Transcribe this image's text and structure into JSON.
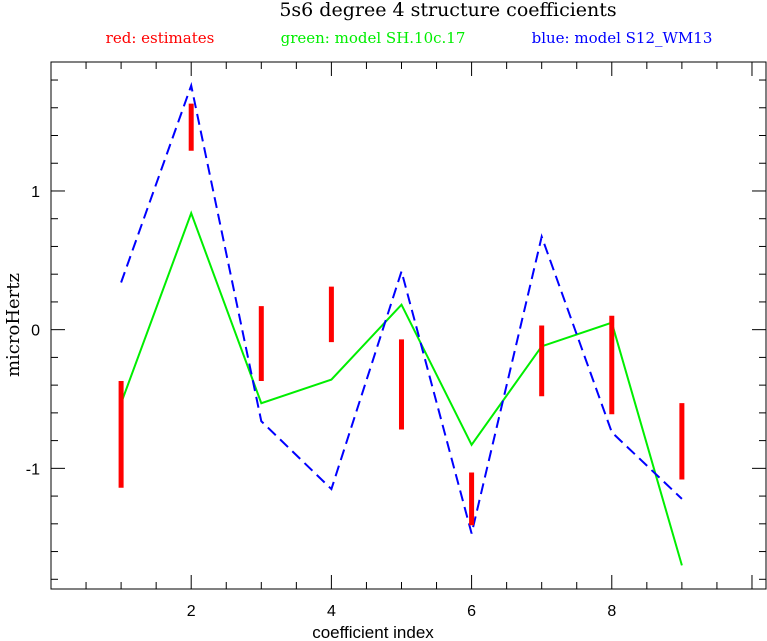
{
  "colors": {
    "estimates": "#ff0000",
    "model_sh": "#00ee00",
    "model_s12": "#0000ff",
    "axis": "#000000"
  },
  "chart_data": {
    "type": "line",
    "title": "5s6 degree 4 structure coefficients",
    "legend": [
      "red: estimates",
      "green: model SH.10c.17",
      "blue: model S12_WM13"
    ],
    "legend_placement": "top",
    "xlabel": "coefficient index",
    "ylabel": "microHertz",
    "xlim": [
      0,
      10.2
    ],
    "ylim": [
      -1.87,
      1.93
    ],
    "grid": false,
    "x_ticks": [
      2,
      4,
      6,
      8
    ],
    "x_tick_labels": [
      "2",
      "4",
      "6",
      "8"
    ],
    "y_ticks": [
      -1,
      0,
      1
    ],
    "y_tick_labels": [
      "-1",
      "0",
      "1"
    ],
    "x": [
      1,
      2,
      3,
      4,
      5,
      6,
      7,
      8,
      9
    ],
    "estimates": [
      {
        "x": 1,
        "low": -1.14,
        "high": -0.37
      },
      {
        "x": 2,
        "low": 1.29,
        "high": 1.63
      },
      {
        "x": 3,
        "low": -0.37,
        "high": 0.17
      },
      {
        "x": 4,
        "low": -0.09,
        "high": 0.31
      },
      {
        "x": 5,
        "low": -0.72,
        "high": -0.07
      },
      {
        "x": 6,
        "low": -1.41,
        "high": -1.03
      },
      {
        "x": 7,
        "low": -0.48,
        "high": 0.03
      },
      {
        "x": 8,
        "low": -0.61,
        "high": 0.1
      },
      {
        "x": 9,
        "low": -1.08,
        "high": -0.53
      }
    ],
    "series": [
      {
        "name": "model SH.10c.17",
        "color": "#00ee00",
        "dashed": false,
        "values": [
          -0.53,
          0.84,
          -0.53,
          -0.36,
          0.18,
          -0.83,
          -0.12,
          0.05,
          -1.7
        ]
      },
      {
        "name": "model S12_WM13",
        "color": "#0000ff",
        "dashed": true,
        "values": [
          0.34,
          1.76,
          -0.66,
          -1.15,
          0.42,
          -1.47,
          0.67,
          -0.74,
          -1.22
        ]
      }
    ]
  }
}
